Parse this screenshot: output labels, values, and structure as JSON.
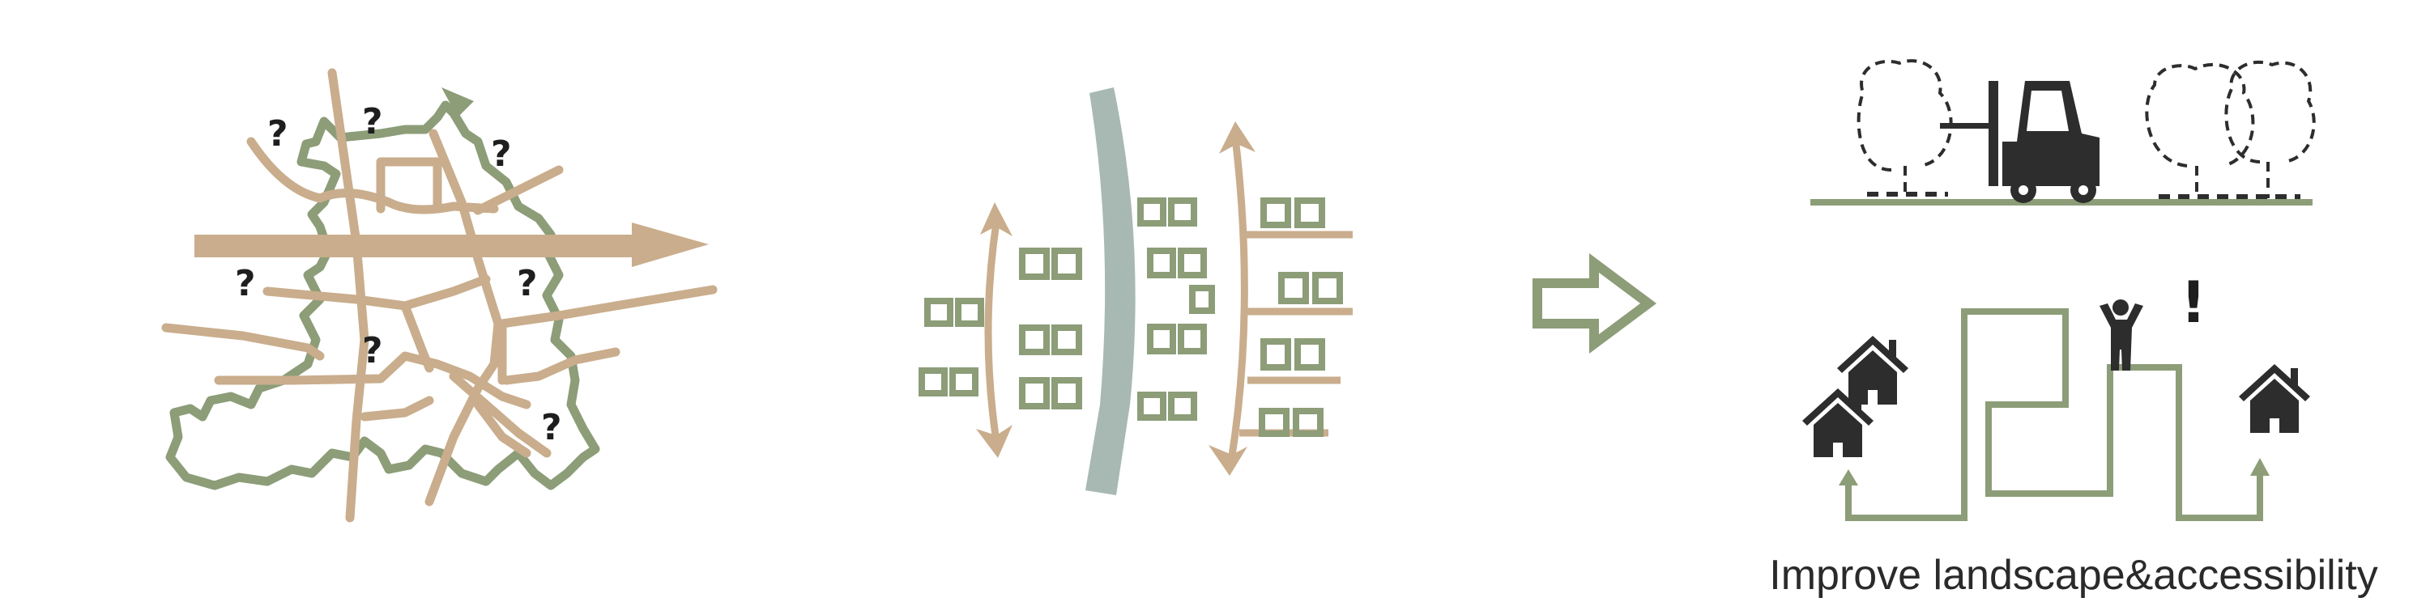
{
  "colors": {
    "tan": "#c9ad8c",
    "green": "#8c9d78",
    "river": "#a7b9b2",
    "dark": "#2d2d2d",
    "text": "#2a2a2a"
  },
  "panel_left": {
    "question_mark": "?"
  },
  "panel_right": {
    "exclamation": "!",
    "caption": "Improve landscape&accessibility"
  },
  "icons": [
    "forklift-icon",
    "tree-outline-icon",
    "house-icon",
    "person-icon",
    "arrow-right-icon"
  ]
}
